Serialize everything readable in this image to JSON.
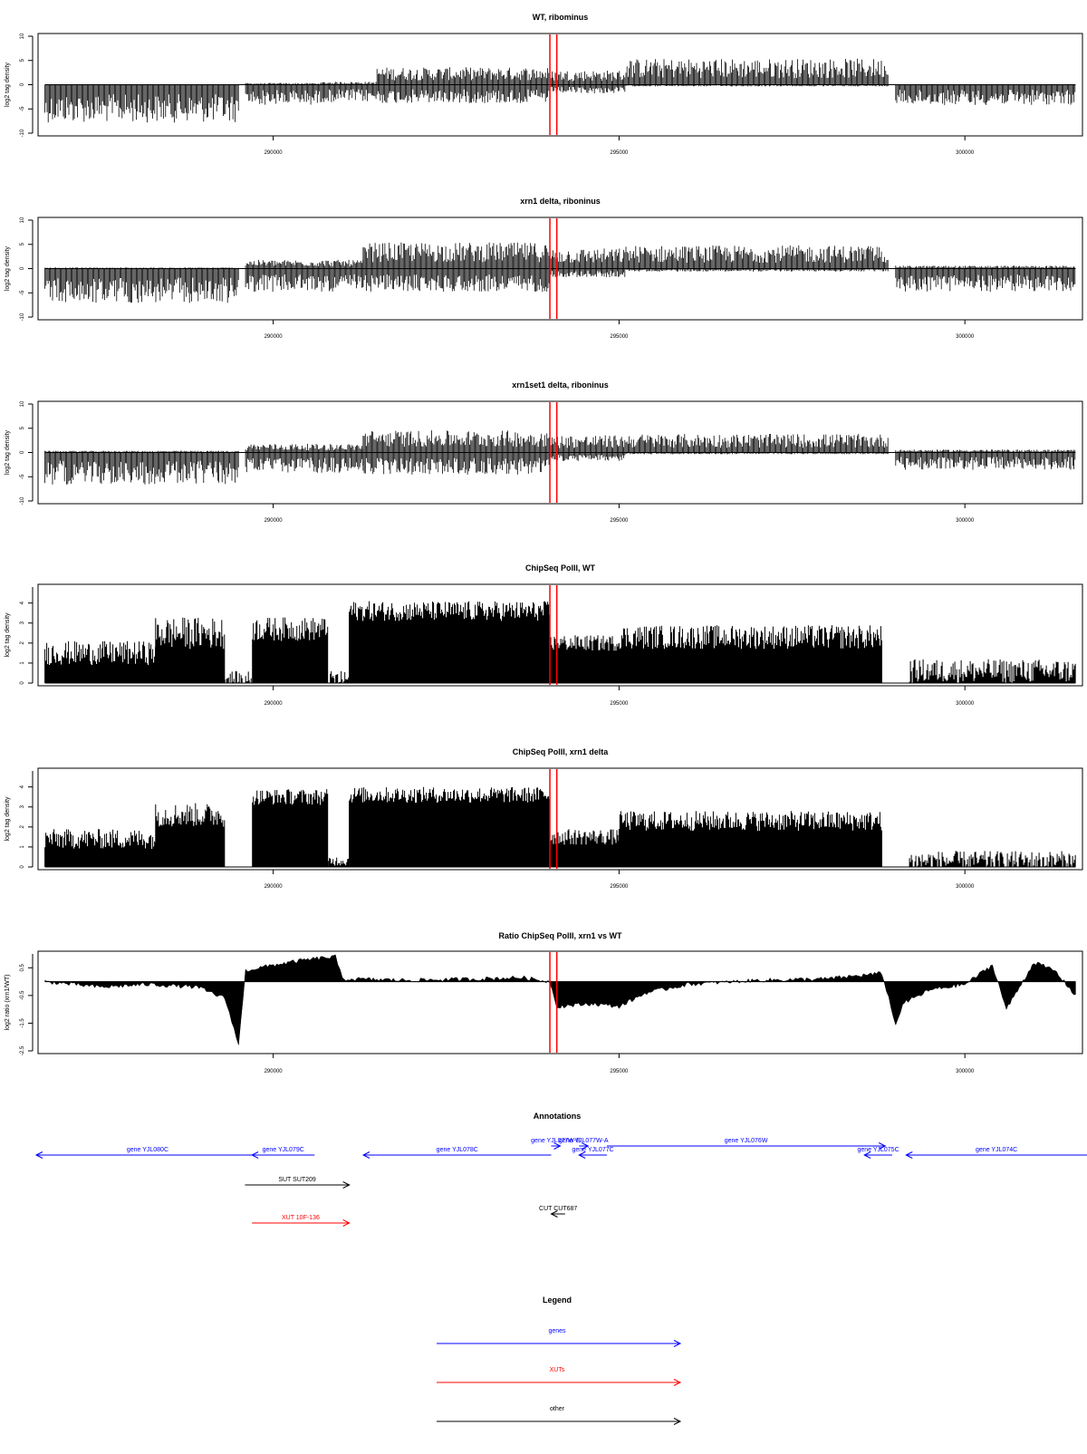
{
  "chart_data": [
    {
      "type": "bar",
      "title": "WT, ribominus",
      "ylabel": "log2 tag density",
      "xlim": [
        286600,
        301700
      ],
      "ylim": [
        -10,
        10
      ],
      "yticks": [
        -10,
        -5,
        0,
        5,
        10
      ],
      "xticks": [
        290000,
        295000,
        300000
      ],
      "markers": [
        294000,
        294100
      ],
      "segments": [
        {
          "x0": 286700,
          "x1": 289500,
          "pos": 0,
          "neg": 6.5
        },
        {
          "x0": 289600,
          "x1": 290700,
          "pos": 0.3,
          "neg": 3.5
        },
        {
          "x0": 290700,
          "x1": 291500,
          "pos": 0.5,
          "neg": 3.0
        },
        {
          "x0": 291500,
          "x1": 294000,
          "pos": 3.0,
          "neg": 3.2
        },
        {
          "x0": 294000,
          "x1": 295100,
          "pos": 2.5,
          "neg": 1.5
        },
        {
          "x0": 295100,
          "x1": 298900,
          "pos": 4.5,
          "neg": 0.3
        },
        {
          "x0": 299000,
          "x1": 301600,
          "pos": 0,
          "neg": 3.5
        }
      ]
    },
    {
      "type": "bar",
      "title": "xrn1 delta, riboninus",
      "ylabel": "log2 tag density",
      "xlim": [
        286600,
        301700
      ],
      "ylim": [
        -10,
        10
      ],
      "yticks": [
        -10,
        -5,
        0,
        5,
        10
      ],
      "xticks": [
        290000,
        295000,
        300000
      ],
      "markers": [
        294000,
        294100
      ],
      "segments": [
        {
          "x0": 286700,
          "x1": 289500,
          "pos": 0.2,
          "neg": 6.0
        },
        {
          "x0": 289600,
          "x1": 291300,
          "pos": 1.5,
          "neg": 4.0
        },
        {
          "x0": 291300,
          "x1": 294000,
          "pos": 4.5,
          "neg": 4.0
        },
        {
          "x0": 294000,
          "x1": 295100,
          "pos": 3.5,
          "neg": 1.5
        },
        {
          "x0": 295100,
          "x1": 298900,
          "pos": 4.0,
          "neg": 0.5
        },
        {
          "x0": 299000,
          "x1": 301600,
          "pos": 0.5,
          "neg": 4.0
        }
      ]
    },
    {
      "type": "bar",
      "title": "xrn1set1 delta, riboninus",
      "ylabel": "log2 tag density",
      "xlim": [
        286600,
        301700
      ],
      "ylim": [
        -10,
        10
      ],
      "yticks": [
        -10,
        -5,
        0,
        5,
        10
      ],
      "xticks": [
        290000,
        295000,
        300000
      ],
      "markers": [
        294000,
        294100
      ],
      "segments": [
        {
          "x0": 286700,
          "x1": 289500,
          "pos": 0.3,
          "neg": 5.5
        },
        {
          "x0": 289600,
          "x1": 291300,
          "pos": 1.5,
          "neg": 3.5
        },
        {
          "x0": 291300,
          "x1": 294000,
          "pos": 3.8,
          "neg": 3.8
        },
        {
          "x0": 294000,
          "x1": 295100,
          "pos": 3.0,
          "neg": 1.5
        },
        {
          "x0": 295100,
          "x1": 298900,
          "pos": 3.2,
          "neg": 0.3
        },
        {
          "x0": 299000,
          "x1": 301600,
          "pos": 0.5,
          "neg": 3.0
        }
      ]
    },
    {
      "type": "bar",
      "title": "ChipSeq PolII, WT",
      "ylabel": "log2 tag density",
      "xlim": [
        286600,
        301700
      ],
      "ylim": [
        0,
        4.8
      ],
      "yticks": [
        0,
        1,
        2,
        3,
        4
      ],
      "xticks": [
        290000,
        295000,
        300000
      ],
      "markers": [
        294000,
        294100
      ],
      "segments": [
        {
          "x0": 286700,
          "x1": 288300,
          "base": 1.5,
          "var": 1.2
        },
        {
          "x0": 288300,
          "x1": 289300,
          "base": 2.5,
          "var": 1.6
        },
        {
          "x0": 289300,
          "x1": 289700,
          "base": 0.2,
          "var": 0.8
        },
        {
          "x0": 289700,
          "x1": 290800,
          "base": 2.7,
          "var": 1.2
        },
        {
          "x0": 290800,
          "x1": 291100,
          "base": 0.2,
          "var": 0.8
        },
        {
          "x0": 291100,
          "x1": 294000,
          "base": 3.6,
          "var": 1.0
        },
        {
          "x0": 294000,
          "x1": 295000,
          "base": 2.0,
          "var": 0.8
        },
        {
          "x0": 295000,
          "x1": 298800,
          "base": 2.3,
          "var": 1.2
        },
        {
          "x0": 298800,
          "x1": 299200,
          "base": 0,
          "var": 0
        },
        {
          "x0": 299200,
          "x1": 301600,
          "base": 0.6,
          "var": 1.2
        }
      ]
    },
    {
      "type": "bar",
      "title": "ChipSeq PolII, xrn1 delta",
      "ylabel": "log2 tag density",
      "xlim": [
        286600,
        301700
      ],
      "ylim": [
        0,
        4.8
      ],
      "yticks": [
        0,
        1,
        2,
        3,
        4
      ],
      "xticks": [
        290000,
        295000,
        300000
      ],
      "markers": [
        294000,
        294100
      ],
      "segments": [
        {
          "x0": 286700,
          "x1": 288300,
          "base": 1.4,
          "var": 1.0
        },
        {
          "x0": 288300,
          "x1": 289300,
          "base": 2.6,
          "var": 1.2
        },
        {
          "x0": 289300,
          "x1": 289700,
          "base": 0,
          "var": 0
        },
        {
          "x0": 289700,
          "x1": 290800,
          "base": 3.5,
          "var": 0.8
        },
        {
          "x0": 290800,
          "x1": 291100,
          "base": 0.3,
          "var": 0.5
        },
        {
          "x0": 291100,
          "x1": 294000,
          "base": 3.6,
          "var": 0.8
        },
        {
          "x0": 294000,
          "x1": 295000,
          "base": 1.5,
          "var": 0.8
        },
        {
          "x0": 295000,
          "x1": 298800,
          "base": 2.3,
          "var": 1.0
        },
        {
          "x0": 298800,
          "x1": 299200,
          "base": 0,
          "var": 0
        },
        {
          "x0": 299200,
          "x1": 301600,
          "base": 0.3,
          "var": 1.0
        }
      ]
    },
    {
      "type": "area",
      "title": "Ratio ChipSeq PolII, xrn1 vs WT",
      "ylabel": "log2 ratio (xrn1/WT)",
      "xlim": [
        286600,
        301700
      ],
      "ylim": [
        -2.5,
        1.0
      ],
      "ytick_values": [
        -2.5,
        -1.5,
        -0.5,
        0.5
      ],
      "ytick_labels": [
        "-2.5",
        "-1.5",
        "-0.5",
        "0.5"
      ],
      "xticks": [
        290000,
        295000,
        300000
      ],
      "markers": [
        294000,
        294100
      ],
      "x": [
        286700,
        287500,
        288200,
        288900,
        289300,
        289400,
        289500,
        289600,
        290000,
        290500,
        290900,
        291000,
        292000,
        293000,
        293600,
        294000,
        294100,
        294600,
        295000,
        295400,
        296000,
        297000,
        298000,
        298800,
        298900,
        299000,
        299100,
        299500,
        300000,
        300400,
        300600,
        301000,
        301300,
        301600
      ],
      "y": [
        0,
        -0.2,
        -0.1,
        -0.2,
        -0.6,
        -1.4,
        -2.3,
        0.4,
        0.6,
        0.8,
        0.9,
        0.1,
        0.05,
        0.1,
        0.15,
        0,
        -0.9,
        -0.8,
        -0.9,
        -0.4,
        -0.1,
        0.05,
        0.1,
        0.3,
        -0.6,
        -1.6,
        -0.8,
        -0.3,
        -0.1,
        0.6,
        -1.0,
        0.7,
        0.4,
        -0.5
      ]
    }
  ],
  "annotations": {
    "title": "Annotations",
    "features": [
      {
        "label": "gene YJL080C",
        "kind": "gene",
        "x0": 286600,
        "x1": 289800,
        "dir": "left",
        "row": 1
      },
      {
        "label": "gene YJL079C",
        "kind": "gene",
        "x0": 289700,
        "x1": 290600,
        "dir": "left",
        "row": 1
      },
      {
        "label": "gene YJL078C",
        "kind": "gene",
        "x0": 291300,
        "x1": 294000,
        "dir": "left",
        "row": 1
      },
      {
        "label": "gene YJL077W-B",
        "kind": "gene",
        "x0": 294000,
        "x1": 294100,
        "dir": "right",
        "row": 0
      },
      {
        "label": "gene YJL077W-A",
        "kind": "gene",
        "x0": 294400,
        "x1": 294500,
        "dir": "right",
        "row": 0
      },
      {
        "label": "gene YJL077C",
        "kind": "gene",
        "x0": 294400,
        "x1": 294800,
        "dir": "left",
        "row": 1
      },
      {
        "label": "gene YJL076W",
        "kind": "gene",
        "x0": 294800,
        "x1": 298800,
        "dir": "right",
        "row": 0
      },
      {
        "label": "gene YJL075C",
        "kind": "gene",
        "x0": 298500,
        "x1": 298900,
        "dir": "left",
        "row": 1
      },
      {
        "label": "gene YJL074C",
        "kind": "gene",
        "x0": 299100,
        "x1": 301700,
        "dir": "left",
        "row": 1
      },
      {
        "label": "SUT SUT209",
        "kind": "other",
        "x0": 289600,
        "x1": 291100,
        "dir": "right",
        "row": 2
      },
      {
        "label": "CUT CUT687",
        "kind": "other",
        "x0": 294000,
        "x1": 294200,
        "dir": "left",
        "row": 3
      },
      {
        "label": "XUT 10F-136",
        "kind": "xut",
        "x0": 289700,
        "x1": 291100,
        "dir": "right",
        "row": 4
      }
    ]
  },
  "legend": {
    "title": "Legend",
    "items": [
      {
        "label": "genes",
        "kind": "gene"
      },
      {
        "label": "XUTs",
        "kind": "xut"
      },
      {
        "label": "other",
        "kind": "other"
      }
    ]
  },
  "colors": {
    "gene": "#0000ff",
    "xut": "#ff0000",
    "other": "#000000",
    "marker": "#ff0000"
  }
}
